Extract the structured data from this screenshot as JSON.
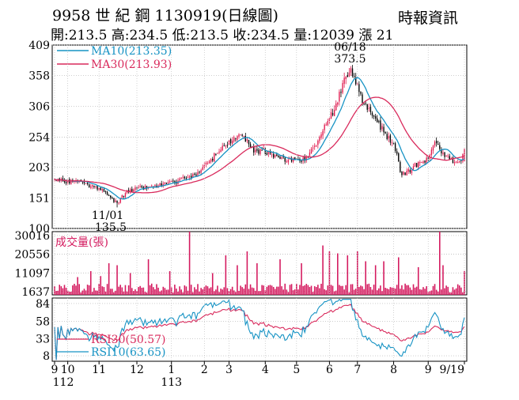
{
  "header": {
    "title": "9958 世 紀 鋼 1130919(日線圖)",
    "ohlc": "開:213.5 高:234.5 低:213.5 收:234.5 量:12039 漲 21",
    "source": "時報資訊"
  },
  "chart_data": [
    {
      "type": "candlestick",
      "title": "9958 世紀鋼 日線圖",
      "y_ticks": [
        409,
        358,
        306,
        254,
        203,
        151,
        100
      ],
      "ylim": [
        100,
        409
      ],
      "bar_count": 250,
      "key_points": [
        {
          "index": 0,
          "close": 183
        },
        {
          "index": 6,
          "close": 178
        },
        {
          "index": 12,
          "close": 181
        },
        {
          "index": 18,
          "close": 176
        },
        {
          "index": 24,
          "close": 170
        },
        {
          "index": 30,
          "close": 162
        },
        {
          "index": 35,
          "close": 150
        },
        {
          "index": 38,
          "close": 143
        },
        {
          "index": 43,
          "close": 160
        },
        {
          "index": 50,
          "close": 168
        },
        {
          "index": 58,
          "close": 170
        },
        {
          "index": 66,
          "close": 175
        },
        {
          "index": 73,
          "close": 178
        },
        {
          "index": 80,
          "close": 185
        },
        {
          "index": 88,
          "close": 195
        },
        {
          "index": 93,
          "close": 210
        },
        {
          "index": 98,
          "close": 225
        },
        {
          "index": 103,
          "close": 240
        },
        {
          "index": 108,
          "close": 248
        },
        {
          "index": 113,
          "close": 258
        },
        {
          "index": 118,
          "close": 242
        },
        {
          "index": 121,
          "close": 228
        },
        {
          "index": 126,
          "close": 232
        },
        {
          "index": 131,
          "close": 226
        },
        {
          "index": 136,
          "close": 220
        },
        {
          "index": 141,
          "close": 213
        },
        {
          "index": 146,
          "close": 216
        },
        {
          "index": 150,
          "close": 212
        },
        {
          "index": 155,
          "close": 228
        },
        {
          "index": 160,
          "close": 248
        },
        {
          "index": 165,
          "close": 275
        },
        {
          "index": 170,
          "close": 300
        },
        {
          "index": 175,
          "close": 345
        },
        {
          "index": 180,
          "close": 370
        },
        {
          "index": 185,
          "close": 330
        },
        {
          "index": 190,
          "close": 300
        },
        {
          "index": 195,
          "close": 285
        },
        {
          "index": 200,
          "close": 262
        },
        {
          "index": 205,
          "close": 245
        },
        {
          "index": 208,
          "close": 226
        },
        {
          "index": 210,
          "close": 195
        },
        {
          "index": 213,
          "close": 190
        },
        {
          "index": 218,
          "close": 205
        },
        {
          "index": 222,
          "close": 212
        },
        {
          "index": 227,
          "close": 218
        },
        {
          "index": 231,
          "close": 246
        },
        {
          "index": 234,
          "close": 234
        },
        {
          "index": 238,
          "close": 222
        },
        {
          "index": 243,
          "close": 212
        },
        {
          "index": 247,
          "close": 214
        },
        {
          "index": 249,
          "close": 234.5
        }
      ],
      "series": [
        {
          "name": "MA10",
          "label": "MA10(213.35)",
          "color": "#1793c4"
        },
        {
          "name": "MA30",
          "label": "MA30(213.93)",
          "color": "#d92a5c"
        }
      ],
      "annotations": [
        {
          "date": "11/01",
          "value": "135.5",
          "index": 38,
          "price": 135.5,
          "kind": "low"
        },
        {
          "date": "06/18",
          "value": "373.5",
          "index": 180,
          "price": 373.5,
          "kind": "high"
        }
      ]
    },
    {
      "type": "bar",
      "title": "成交量(張)",
      "y_ticks": [
        30016,
        20556,
        11097,
        1637
      ],
      "ylim": [
        0,
        32000
      ],
      "spikes": [
        {
          "index": 14,
          "value": 9000
        },
        {
          "index": 22,
          "value": 12000
        },
        {
          "index": 28,
          "value": 9500
        },
        {
          "index": 33,
          "value": 16000
        },
        {
          "index": 38,
          "value": 15000
        },
        {
          "index": 46,
          "value": 11000
        },
        {
          "index": 57,
          "value": 18000
        },
        {
          "index": 70,
          "value": 12000
        },
        {
          "index": 82,
          "value": 32000
        },
        {
          "index": 96,
          "value": 11000
        },
        {
          "index": 104,
          "value": 20000
        },
        {
          "index": 111,
          "value": 15000
        },
        {
          "index": 117,
          "value": 22000
        },
        {
          "index": 123,
          "value": 16000
        },
        {
          "index": 137,
          "value": 18000
        },
        {
          "index": 150,
          "value": 16000
        },
        {
          "index": 163,
          "value": 25000
        },
        {
          "index": 167,
          "value": 22000
        },
        {
          "index": 172,
          "value": 21000
        },
        {
          "index": 178,
          "value": 20000
        },
        {
          "index": 184,
          "value": 22000
        },
        {
          "index": 189,
          "value": 17000
        },
        {
          "index": 195,
          "value": 15000
        },
        {
          "index": 200,
          "value": 17000
        },
        {
          "index": 209,
          "value": 19000
        },
        {
          "index": 221,
          "value": 14000
        },
        {
          "index": 234,
          "value": 32000
        },
        {
          "index": 236,
          "value": 15000
        }
      ],
      "last_value": 12039
    },
    {
      "type": "line",
      "title": "RSI",
      "y_ticks": [
        84,
        58,
        33,
        8
      ],
      "ylim": [
        0,
        92
      ],
      "series": [
        {
          "name": "RSI30",
          "label": "RSI30(50.57)",
          "color": "#d92a5c",
          "last": 50.57
        },
        {
          "name": "RSI10",
          "label": "RSI10(63.65)",
          "color": "#1793c4",
          "last": 63.65
        }
      ]
    }
  ],
  "x_axis": {
    "months": [
      {
        "label": "9",
        "index": 0
      },
      {
        "label": "10",
        "index": 8
      },
      {
        "label": "11",
        "index": 27
      },
      {
        "label": "12",
        "index": 50
      },
      {
        "label": "1",
        "index": 71
      },
      {
        "label": "2",
        "index": 91
      },
      {
        "label": "3",
        "index": 106
      },
      {
        "label": "4",
        "index": 128
      },
      {
        "label": "5",
        "index": 147
      },
      {
        "label": "6",
        "index": 167
      },
      {
        "label": "7",
        "index": 184
      },
      {
        "label": "8",
        "index": 206
      },
      {
        "label": "9",
        "index": 227
      },
      {
        "label": "9/19",
        "index": 249
      }
    ],
    "years": [
      {
        "label": "112",
        "index": 0
      },
      {
        "label": "113",
        "index": 71
      }
    ]
  }
}
